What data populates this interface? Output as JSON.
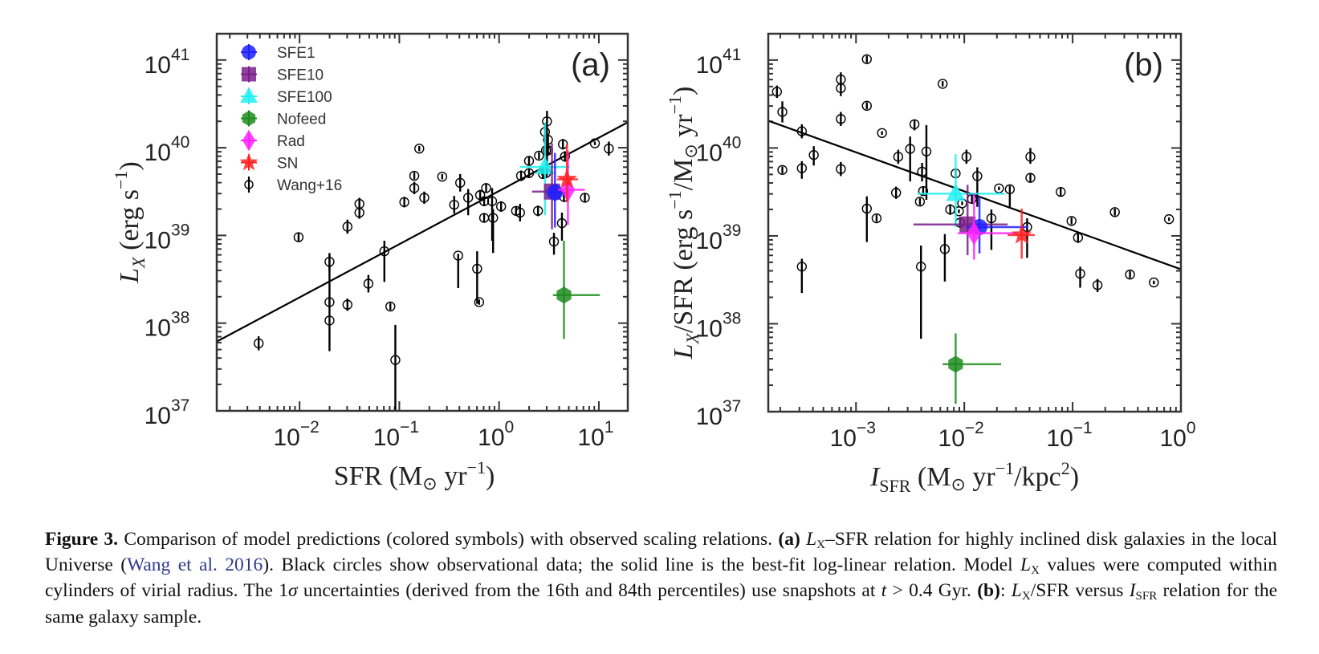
{
  "figure": {
    "caption": {
      "label": "Figure 3.",
      "text_1": " Comparison of model predictions (colored symbols) with observed scaling relations. ",
      "panel_a": "(a)",
      "lx": "L",
      "lx_sub": "X",
      "text_2": "–SFR relation for highly inclined disk galaxies in the local Universe (",
      "citation": "Wang et al. 2016",
      "text_3": "). Black circles show observational data; the solid line is the best-fit log-linear relation. Model ",
      "text_4": " values were computed within cylinders of virial radius. The 1",
      "sigma": "σ",
      "text_5": " uncertainties (derived from the 16th and 84th percentiles) use snapshots at ",
      "t": "t",
      "text_6": " > 0.4 Gyr. ",
      "panel_b": "(b)",
      "text_7": ": ",
      "text_8": "/SFR versus ",
      "isfr": "I",
      "isfr_sub": "SFR",
      "text_9": " relation for the same galaxy sample."
    }
  },
  "legend": [
    {
      "name": "SFE1",
      "marker": "circle",
      "color": "#1f1fff"
    },
    {
      "name": "SFE10",
      "marker": "square",
      "color": "#7a1f8a"
    },
    {
      "name": "SFE100",
      "marker": "triangle",
      "color": "#22f0f0"
    },
    {
      "name": "Nofeed",
      "marker": "hexagon",
      "color": "#1e8c1e"
    },
    {
      "name": "Rad",
      "marker": "diamond",
      "color": "#ff22ff"
    },
    {
      "name": "SN",
      "marker": "star",
      "color": "#ff2222"
    },
    {
      "name": "Wang+16",
      "marker": "open-circle-errorbar",
      "color": "#000000"
    }
  ],
  "chart_data": [
    {
      "type": "scatter",
      "panel_label": "(a)",
      "xlabel": "SFR (M⊙ yr⁻¹)",
      "ylabel": "L_X (erg s⁻¹)",
      "xscale": "log",
      "yscale": "log",
      "xlim_log10": [
        -2.83,
        1.29
      ],
      "ylim_log10": [
        37,
        41.3
      ],
      "xticks": [
        {
          "exp": "−2",
          "v": -2
        },
        {
          "exp": "−1",
          "v": -1
        },
        {
          "exp": "0",
          "v": 0
        },
        {
          "exp": "1",
          "v": 1
        }
      ],
      "yticks": [
        {
          "exp": "37",
          "v": 37
        },
        {
          "exp": "38",
          "v": 38
        },
        {
          "exp": "39",
          "v": 39
        },
        {
          "exp": "40",
          "v": 40
        },
        {
          "exp": "41",
          "v": 41
        }
      ],
      "legend_position": "top-left",
      "fit_line_log10": {
        "x": [
          -2.83,
          1.29
        ],
        "y": [
          37.79,
          40.29
        ]
      },
      "observed_log10": [
        {
          "x": -2.41,
          "y": 37.77,
          "lo": 0.08,
          "hi": 0.08
        },
        {
          "x": -2.01,
          "y": 38.98,
          "lo": 0.05,
          "hi": 0.05
        },
        {
          "x": -1.7,
          "y": 38.7,
          "lo": 0.1,
          "hi": 0.1
        },
        {
          "x": -1.7,
          "y": 38.24,
          "lo": 0.05,
          "hi": 0.05
        },
        {
          "x": -1.7,
          "y": 38.03,
          "lo": 0.35,
          "hi": 0.75
        },
        {
          "x": -1.52,
          "y": 39.1,
          "lo": 0.08,
          "hi": 0.08
        },
        {
          "x": -1.52,
          "y": 38.21,
          "lo": 0.07,
          "hi": 0.07
        },
        {
          "x": -1.4,
          "y": 39.36,
          "lo": 0.07,
          "hi": 0.07
        },
        {
          "x": -1.4,
          "y": 39.26,
          "lo": 0.07,
          "hi": 0.07
        },
        {
          "x": -1.31,
          "y": 38.45,
          "lo": 0.1,
          "hi": 0.1
        },
        {
          "x": -1.15,
          "y": 38.82,
          "lo": 0.35,
          "hi": 0.12
        },
        {
          "x": -1.09,
          "y": 38.19,
          "lo": 0.04,
          "hi": 0.04
        },
        {
          "x": -1.04,
          "y": 37.58,
          "lo": 0.7,
          "hi": 0.4
        },
        {
          "x": -0.95,
          "y": 39.38,
          "lo": 0.06,
          "hi": 0.06
        },
        {
          "x": -0.85,
          "y": 39.68,
          "lo": 0.04,
          "hi": 0.04
        },
        {
          "x": -0.85,
          "y": 39.54,
          "lo": 0.07,
          "hi": 0.07
        },
        {
          "x": -0.8,
          "y": 39.99,
          "lo": 0.03,
          "hi": 0.03
        },
        {
          "x": -0.75,
          "y": 39.43,
          "lo": 0.07,
          "hi": 0.07
        },
        {
          "x": -0.57,
          "y": 39.67,
          "lo": 0.03,
          "hi": 0.03
        },
        {
          "x": -0.45,
          "y": 39.35,
          "lo": 0.1,
          "hi": 0.1
        },
        {
          "x": -0.41,
          "y": 38.77,
          "lo": 0.37,
          "hi": 0.02
        },
        {
          "x": -0.39,
          "y": 39.6,
          "lo": 0.1,
          "hi": 0.1
        },
        {
          "x": -0.31,
          "y": 39.43,
          "lo": 0.2,
          "hi": 0.1
        },
        {
          "x": -0.22,
          "y": 38.62,
          "lo": 0.4,
          "hi": 0.2
        },
        {
          "x": -0.2,
          "y": 38.24,
          "lo": 0.03,
          "hi": 0.03
        },
        {
          "x": -0.19,
          "y": 39.46,
          "lo": 0.06,
          "hi": 0.06
        },
        {
          "x": -0.15,
          "y": 39.39,
          "lo": 0.05,
          "hi": 0.05
        },
        {
          "x": -0.13,
          "y": 39.54,
          "lo": 0.05,
          "hi": 0.05
        },
        {
          "x": -0.15,
          "y": 39.2,
          "lo": 0.05,
          "hi": 0.05
        },
        {
          "x": -0.07,
          "y": 39.39,
          "lo": 0.45,
          "hi": 0.15
        },
        {
          "x": -0.06,
          "y": 39.2,
          "lo": 0.4,
          "hi": 0.1
        },
        {
          "x": 0.02,
          "y": 39.33,
          "lo": 0.06,
          "hi": 0.06
        },
        {
          "x": 0.17,
          "y": 39.28,
          "lo": 0.05,
          "hi": 0.05
        },
        {
          "x": 0.21,
          "y": 39.26,
          "lo": 0.1,
          "hi": 0.1
        },
        {
          "x": 0.22,
          "y": 39.68,
          "lo": 0.06,
          "hi": 0.06
        },
        {
          "x": 0.3,
          "y": 39.71,
          "lo": 0.05,
          "hi": 0.05
        },
        {
          "x": 0.3,
          "y": 39.85,
          "lo": 0.05,
          "hi": 0.05
        },
        {
          "x": 0.39,
          "y": 39.28,
          "lo": 0.06,
          "hi": 0.06
        },
        {
          "x": 0.4,
          "y": 39.91,
          "lo": 0.04,
          "hi": 0.04
        },
        {
          "x": 0.44,
          "y": 39.7,
          "lo": 0.05,
          "hi": 0.05
        },
        {
          "x": 0.46,
          "y": 40.18,
          "lo": 0.15,
          "hi": 0.1
        },
        {
          "x": 0.48,
          "y": 40.3,
          "lo": 0.6,
          "hi": 0.12
        },
        {
          "x": 0.49,
          "y": 40.09,
          "lo": 0.06,
          "hi": 0.06
        },
        {
          "x": 0.47,
          "y": 39.97,
          "lo": 0.06,
          "hi": 0.06
        },
        {
          "x": 0.49,
          "y": 39.97,
          "lo": 0.06,
          "hi": 0.06
        },
        {
          "x": 0.47,
          "y": 39.71,
          "lo": 0.05,
          "hi": 0.05
        },
        {
          "x": 0.64,
          "y": 40.04,
          "lo": 0.06,
          "hi": 0.06
        },
        {
          "x": 0.66,
          "y": 39.9,
          "lo": 0.06,
          "hi": 0.06
        },
        {
          "x": 0.65,
          "y": 39.44,
          "lo": 0.06,
          "hi": 0.06
        },
        {
          "x": 0.55,
          "y": 38.93,
          "lo": 0.15,
          "hi": 0.1
        },
        {
          "x": 0.63,
          "y": 39.14,
          "lo": 0.2,
          "hi": 0.12
        },
        {
          "x": 0.86,
          "y": 39.43,
          "lo": 0.05,
          "hi": 0.05
        },
        {
          "x": 0.96,
          "y": 40.05,
          "lo": 0.02,
          "hi": 0.02
        },
        {
          "x": 1.1,
          "y": 39.99,
          "lo": 0.08,
          "hi": 0.08
        }
      ],
      "models_log10": [
        {
          "name": "SFE100",
          "x": 0.46,
          "y": 39.78,
          "xerr": [
            0.25,
            0.25
          ],
          "yerr": [
            0.55,
            0.51
          ]
        },
        {
          "name": "SFE10",
          "x": 0.53,
          "y": 39.5,
          "xerr": [
            0.2,
            0.1
          ],
          "yerr": [
            0.43,
            0.55
          ]
        },
        {
          "name": "SFE1",
          "x": 0.56,
          "y": 39.49,
          "xerr": [
            0.05,
            0.05
          ],
          "yerr": [
            0.4,
            0.45
          ]
        },
        {
          "name": "Rad",
          "x": 0.69,
          "y": 39.52,
          "xerr": [
            0.1,
            0.17
          ],
          "yerr": [
            0.4,
            0.45
          ]
        },
        {
          "name": "SN",
          "x": 0.68,
          "y": 39.64,
          "xerr": [
            0.1,
            0.11
          ],
          "yerr": [
            0.26,
            0.4
          ]
        },
        {
          "name": "Nofeed",
          "x": 0.65,
          "y": 38.32,
          "xerr": [
            0.11,
            0.36
          ],
          "yerr": [
            0.5,
            0.62
          ]
        }
      ]
    },
    {
      "type": "scatter",
      "panel_label": "(b)",
      "xlabel": "I_SFR (M⊙ yr⁻¹/kpc²)",
      "ylabel": "L_X/SFR (erg s⁻¹/M⊙ yr⁻¹)",
      "xscale": "log",
      "yscale": "log",
      "xlim_log10": [
        -3.81,
        0
      ],
      "ylim_log10": [
        37,
        41.3
      ],
      "xticks": [
        {
          "exp": "−3",
          "v": -3
        },
        {
          "exp": "−2",
          "v": -2
        },
        {
          "exp": "−1",
          "v": -1
        },
        {
          "exp": "0",
          "v": 0
        }
      ],
      "yticks": [
        {
          "exp": "37",
          "v": 37
        },
        {
          "exp": "38",
          "v": 38
        },
        {
          "exp": "39",
          "v": 39
        },
        {
          "exp": "40",
          "v": 40
        },
        {
          "exp": "41",
          "v": 41
        }
      ],
      "fit_line_log10": {
        "x": [
          -3.81,
          0
        ],
        "y": [
          40.31,
          38.62
        ]
      },
      "observed_log10": [
        {
          "x": -3.73,
          "y": 40.64,
          "lo": 0.07,
          "hi": 0.07
        },
        {
          "x": -3.68,
          "y": 40.41,
          "lo": 0.12,
          "hi": 0.12
        },
        {
          "x": -3.5,
          "y": 40.19,
          "lo": 0.08,
          "hi": 0.08
        },
        {
          "x": -3.68,
          "y": 39.75,
          "lo": 0.04,
          "hi": 0.04
        },
        {
          "x": -3.5,
          "y": 39.77,
          "lo": 0.12,
          "hi": 0.08
        },
        {
          "x": -3.39,
          "y": 39.92,
          "lo": 0.12,
          "hi": 0.1
        },
        {
          "x": -3.14,
          "y": 40.78,
          "lo": 0.08,
          "hi": 0.08
        },
        {
          "x": -3.14,
          "y": 40.68,
          "lo": 0.09,
          "hi": 0.05
        },
        {
          "x": -3.14,
          "y": 40.33,
          "lo": 0.08,
          "hi": 0.08
        },
        {
          "x": -3.14,
          "y": 39.76,
          "lo": 0.08,
          "hi": 0.08
        },
        {
          "x": -3.5,
          "y": 38.65,
          "lo": 0.3,
          "hi": 0.09
        },
        {
          "x": -2.9,
          "y": 41.01,
          "lo": 0.04,
          "hi": 0.04
        },
        {
          "x": -2.9,
          "y": 40.48,
          "lo": 0.04,
          "hi": 0.04
        },
        {
          "x": -2.9,
          "y": 39.31,
          "lo": 0.38,
          "hi": 0.14
        },
        {
          "x": -2.81,
          "y": 39.2,
          "lo": 0.04,
          "hi": 0.04
        },
        {
          "x": -2.76,
          "y": 40.17,
          "lo": 0.02,
          "hi": 0.02
        },
        {
          "x": -2.61,
          "y": 39.9,
          "lo": 0.08,
          "hi": 0.08
        },
        {
          "x": -2.63,
          "y": 39.49,
          "lo": 0.07,
          "hi": 0.07
        },
        {
          "x": -2.5,
          "y": 39.99,
          "lo": 0.37,
          "hi": 0.14
        },
        {
          "x": -2.46,
          "y": 40.27,
          "lo": 0.07,
          "hi": 0.05
        },
        {
          "x": -2.39,
          "y": 39.73,
          "lo": 0.11,
          "hi": 0.1
        },
        {
          "x": -2.35,
          "y": 39.96,
          "lo": 0.55,
          "hi": 0.3
        },
        {
          "x": -2.38,
          "y": 39.51,
          "lo": 0.05,
          "hi": 0.05
        },
        {
          "x": -2.41,
          "y": 39.39,
          "lo": 0.04,
          "hi": 0.04
        },
        {
          "x": -2.4,
          "y": 38.65,
          "lo": 0.82,
          "hi": 0.24
        },
        {
          "x": -2.18,
          "y": 38.85,
          "lo": 0.37,
          "hi": 0.17
        },
        {
          "x": -2.2,
          "y": 40.73,
          "lo": 0.03,
          "hi": 0.03
        },
        {
          "x": -2.08,
          "y": 39.71,
          "lo": 0.05,
          "hi": 0.05
        },
        {
          "x": -1.98,
          "y": 39.9,
          "lo": 0.08,
          "hi": 0.08
        },
        {
          "x": -1.88,
          "y": 39.68,
          "lo": 0.35,
          "hi": 0.1
        },
        {
          "x": -2.13,
          "y": 39.3,
          "lo": 0.06,
          "hi": 0.06
        },
        {
          "x": -2.05,
          "y": 39.28,
          "lo": 0.02,
          "hi": 0.02
        },
        {
          "x": -2.02,
          "y": 39.37,
          "lo": 0.02,
          "hi": 0.02
        },
        {
          "x": -1.93,
          "y": 39.42,
          "lo": 0.05,
          "hi": 0.05
        },
        {
          "x": -2.04,
          "y": 39.15,
          "lo": 0.05,
          "hi": 0.05
        },
        {
          "x": -1.75,
          "y": 39.2,
          "lo": 0.36,
          "hi": 0.1
        },
        {
          "x": -1.68,
          "y": 39.54,
          "lo": 0.02,
          "hi": 0.02
        },
        {
          "x": -1.58,
          "y": 39.53,
          "lo": 0.2,
          "hi": 0.04
        },
        {
          "x": -1.39,
          "y": 39.9,
          "lo": 0.08,
          "hi": 0.1
        },
        {
          "x": -1.39,
          "y": 39.66,
          "lo": 0.05,
          "hi": 0.05
        },
        {
          "x": -1.42,
          "y": 39.1,
          "lo": 0.35,
          "hi": 0.1
        },
        {
          "x": -1.11,
          "y": 39.5,
          "lo": 0.05,
          "hi": 0.05
        },
        {
          "x": -1.01,
          "y": 39.17,
          "lo": 0.04,
          "hi": 0.04
        },
        {
          "x": -0.95,
          "y": 38.98,
          "lo": 0.06,
          "hi": 0.06
        },
        {
          "x": -0.93,
          "y": 38.57,
          "lo": 0.16,
          "hi": 0.08
        },
        {
          "x": -0.61,
          "y": 39.27,
          "lo": 0.04,
          "hi": 0.04
        },
        {
          "x": -0.47,
          "y": 38.56,
          "lo": 0.04,
          "hi": 0.04
        },
        {
          "x": -0.77,
          "y": 38.44,
          "lo": 0.08,
          "hi": 0.07
        },
        {
          "x": -0.25,
          "y": 38.47,
          "lo": 0.02,
          "hi": 0.02
        },
        {
          "x": -0.11,
          "y": 39.19,
          "lo": 0.02,
          "hi": 0.02
        }
      ],
      "models_log10": [
        {
          "name": "SFE100",
          "x": -2.08,
          "y": 39.48,
          "xerr": [
            0.35,
            0.45
          ],
          "yerr": [
            0.38,
            0.45
          ]
        },
        {
          "name": "SFE10",
          "x": -1.97,
          "y": 39.13,
          "xerr": [
            0.5,
            0.37
          ],
          "yerr": [
            0.35,
            0.45
          ]
        },
        {
          "name": "SFE1",
          "x": -1.86,
          "y": 39.1,
          "xerr": [
            0.12,
            0.45
          ],
          "yerr": [
            0.3,
            0.35
          ]
        },
        {
          "name": "Rad",
          "x": -1.91,
          "y": 39.03,
          "xerr": [
            0.15,
            0.4
          ],
          "yerr": [
            0.3,
            0.45
          ]
        },
        {
          "name": "SN",
          "x": -1.47,
          "y": 39.01,
          "xerr": [
            0.13,
            0.12
          ],
          "yerr": [
            0.27,
            0.3
          ]
        },
        {
          "name": "Nofeed",
          "x": -2.08,
          "y": 37.54,
          "xerr": [
            0.12,
            0.42
          ],
          "yerr": [
            0.45,
            0.35
          ]
        }
      ]
    }
  ]
}
